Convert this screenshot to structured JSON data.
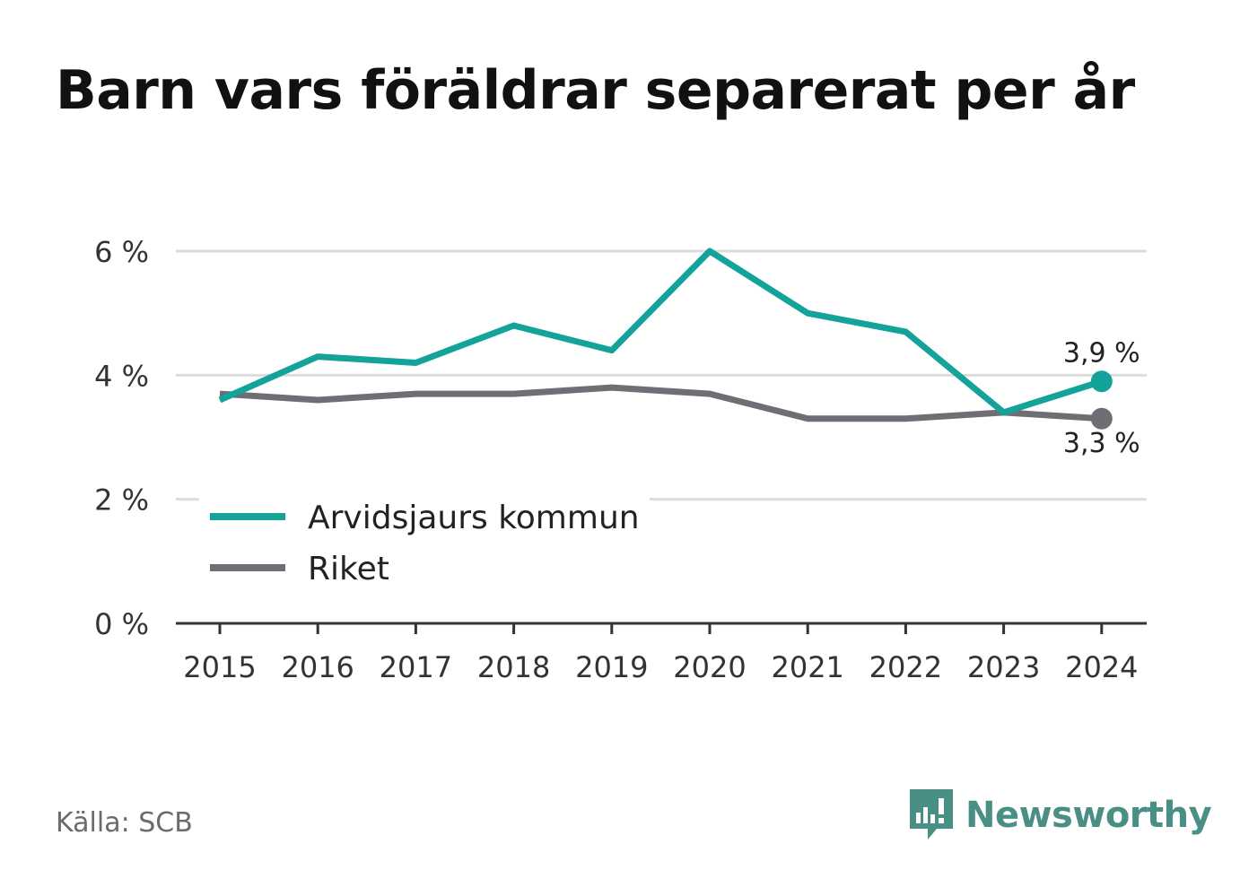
{
  "title": "Barn vars föräldrar separerat per år",
  "source": "Källa: SCB",
  "brand": {
    "name": "Newsworthy",
    "icon": "newsworthy-logo-icon",
    "color": "#4a8f86"
  },
  "colors": {
    "kommun": "#13a39a",
    "riket": "#6e6e74",
    "grid": "#dcdcdc",
    "axis": "#333333"
  },
  "chart_data": {
    "type": "line",
    "x": [
      "2015",
      "2016",
      "2017",
      "2018",
      "2019",
      "2020",
      "2021",
      "2022",
      "2023",
      "2024"
    ],
    "ylim": [
      0,
      6
    ],
    "yticks": [
      0,
      2,
      4,
      6
    ],
    "ytick_labels": [
      "0 %",
      "2 %",
      "4 %",
      "6 %"
    ],
    "grid": true,
    "legend_position": "bottom-left",
    "series": [
      {
        "name": "Arvidsjaurs kommun",
        "color": "#13a39a",
        "values": [
          3.6,
          4.3,
          4.2,
          4.8,
          4.4,
          6.0,
          5.0,
          4.7,
          3.4,
          3.9
        ],
        "end_label": "3,9 %"
      },
      {
        "name": "Riket",
        "color": "#6e6e74",
        "values": [
          3.7,
          3.6,
          3.7,
          3.7,
          3.8,
          3.7,
          3.3,
          3.3,
          3.4,
          3.3
        ],
        "end_label": "3,3 %"
      }
    ]
  }
}
